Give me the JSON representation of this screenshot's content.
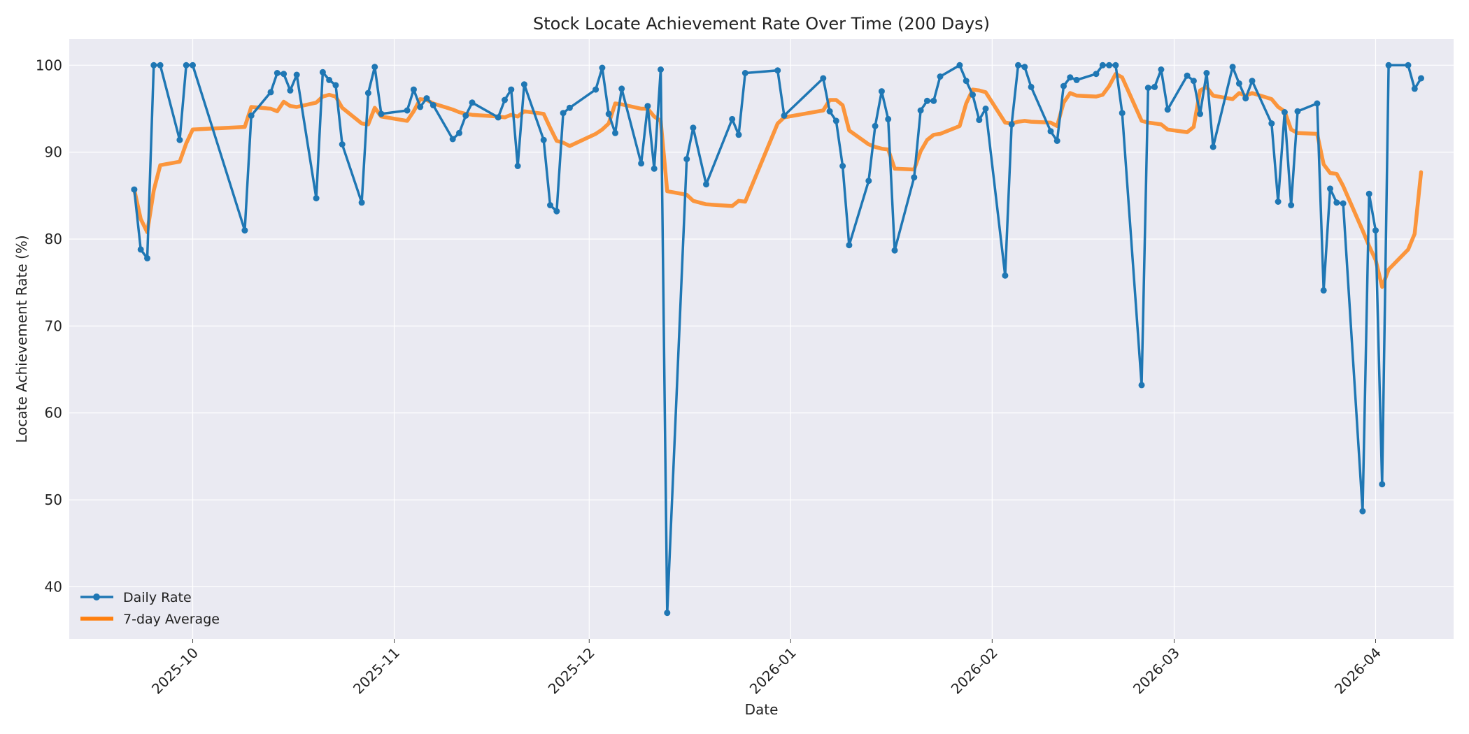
{
  "chart_data": {
    "type": "line",
    "title": "Stock Locate Achievement Rate Over Time (200 Days)",
    "xlabel": "Date",
    "ylabel": "Locate Achievement Rate (%)",
    "xlim": [
      "2025-09-12",
      "2026-04-13"
    ],
    "ylim": [
      34,
      103
    ],
    "yticks": [
      40,
      50,
      60,
      70,
      80,
      90,
      100
    ],
    "xticks": [
      {
        "date": "2025-10-01",
        "label": "2025-10"
      },
      {
        "date": "2025-11-01",
        "label": "2025-11"
      },
      {
        "date": "2025-12-01",
        "label": "2025-12"
      },
      {
        "date": "2026-01-01",
        "label": "2026-01"
      },
      {
        "date": "2026-02-01",
        "label": "2026-02"
      },
      {
        "date": "2026-03-01",
        "label": "2026-03"
      },
      {
        "date": "2026-04-01",
        "label": "2026-04"
      }
    ],
    "grid": true,
    "legend_position": "lower-left",
    "colors": {
      "daily": "#1f77b4",
      "avg": "#ff7f0e",
      "plot_bg": "#eaeaf2"
    },
    "series": [
      {
        "name": "Daily Rate",
        "x": [
          "2025-09-22",
          "2025-09-23",
          "2025-09-24",
          "2025-09-25",
          "2025-09-26",
          "2025-09-29",
          "2025-09-30",
          "2025-10-01",
          "2025-10-09",
          "2025-10-10",
          "2025-10-13",
          "2025-10-14",
          "2025-10-15",
          "2025-10-16",
          "2025-10-17",
          "2025-10-20",
          "2025-10-21",
          "2025-10-22",
          "2025-10-23",
          "2025-10-24",
          "2025-10-27",
          "2025-10-28",
          "2025-10-29",
          "2025-10-30",
          "2025-11-03",
          "2025-11-04",
          "2025-11-05",
          "2025-11-06",
          "2025-11-07",
          "2025-11-10",
          "2025-11-11",
          "2025-11-12",
          "2025-11-13",
          "2025-11-17",
          "2025-11-18",
          "2025-11-19",
          "2025-11-20",
          "2025-11-21",
          "2025-11-24",
          "2025-11-25",
          "2025-11-26",
          "2025-11-27",
          "2025-11-28",
          "2025-12-02",
          "2025-12-03",
          "2025-12-04",
          "2025-12-05",
          "2025-12-06",
          "2025-12-09",
          "2025-12-10",
          "2025-12-11",
          "2025-12-12",
          "2025-12-13",
          "2025-12-16",
          "2025-12-17",
          "2025-12-19",
          "2025-12-23",
          "2025-12-24",
          "2025-12-25",
          "2025-12-30",
          "2025-12-31",
          "2026-01-06",
          "2026-01-07",
          "2026-01-08",
          "2026-01-09",
          "2026-01-10",
          "2026-01-13",
          "2026-01-14",
          "2026-01-15",
          "2026-01-16",
          "2026-01-17",
          "2026-01-20",
          "2026-01-21",
          "2026-01-22",
          "2026-01-23",
          "2026-01-24",
          "2026-01-27",
          "2026-01-28",
          "2026-01-29",
          "2026-01-30",
          "2026-01-31",
          "2026-02-03",
          "2026-02-04",
          "2026-02-05",
          "2026-02-06",
          "2026-02-07",
          "2026-02-10",
          "2026-02-11",
          "2026-02-12",
          "2026-02-13",
          "2026-02-14",
          "2026-02-17",
          "2026-02-18",
          "2026-02-19",
          "2026-02-20",
          "2026-02-21",
          "2026-02-24",
          "2026-02-25",
          "2026-02-26",
          "2026-02-27",
          "2026-02-28",
          "2026-03-03",
          "2026-03-04",
          "2026-03-05",
          "2026-03-06",
          "2026-03-07",
          "2026-03-10",
          "2026-03-11",
          "2026-03-12",
          "2026-03-13",
          "2026-03-16",
          "2026-03-17",
          "2026-03-18",
          "2026-03-19",
          "2026-03-20",
          "2026-03-23",
          "2026-03-24",
          "2026-03-25",
          "2026-03-26",
          "2026-03-27",
          "2026-03-30",
          "2026-03-31",
          "2026-04-01",
          "2026-04-02",
          "2026-04-03",
          "2026-04-06",
          "2026-04-07",
          "2026-04-08"
        ],
        "values": [
          85.7,
          78.8,
          77.8,
          100.0,
          100.0,
          91.4,
          100.0,
          100.0,
          81.0,
          94.2,
          96.9,
          99.1,
          99.0,
          97.1,
          98.9,
          84.7,
          99.2,
          98.3,
          97.7,
          90.9,
          84.2,
          96.8,
          99.8,
          94.4,
          94.8,
          97.2,
          95.2,
          96.2,
          95.4,
          91.5,
          92.2,
          94.2,
          95.7,
          94.0,
          96.0,
          97.2,
          88.4,
          97.8,
          91.4,
          83.9,
          83.2,
          94.5,
          95.1,
          97.2,
          99.7,
          94.4,
          92.2,
          97.3,
          88.7,
          95.3,
          88.1,
          99.5,
          37.0,
          89.2,
          92.8,
          86.3,
          93.8,
          92.0,
          99.1,
          99.4,
          94.2,
          98.5,
          94.7,
          93.6,
          88.4,
          79.3,
          86.7,
          93.0,
          97.0,
          93.8,
          78.7,
          87.1,
          94.8,
          95.9,
          95.9,
          98.7,
          100.0,
          98.2,
          96.6,
          93.7,
          95.0,
          75.8,
          93.2,
          100.0,
          99.8,
          97.5,
          92.4,
          91.3,
          97.6,
          98.6,
          98.3,
          99.0,
          100.0,
          100.0,
          100.0,
          94.5,
          63.2,
          97.4,
          97.5,
          99.5,
          94.9,
          98.8,
          98.2,
          94.4,
          99.1,
          90.6,
          99.8,
          97.9,
          96.2,
          98.2,
          93.3,
          84.3,
          94.6,
          83.9,
          94.7,
          95.6,
          74.1,
          85.8,
          84.2,
          84.1,
          48.7,
          85.2,
          81.0,
          51.8,
          100.0,
          100.0,
          97.3,
          98.5
        ]
      },
      {
        "name": "7-day Average",
        "x": [
          "2025-09-22",
          "2025-09-23",
          "2025-09-24",
          "2025-09-25",
          "2025-09-26",
          "2025-09-29",
          "2025-09-30",
          "2025-10-01",
          "2025-10-09",
          "2025-10-10",
          "2025-10-13",
          "2025-10-14",
          "2025-10-15",
          "2025-10-16",
          "2025-10-17",
          "2025-10-20",
          "2025-10-21",
          "2025-10-22",
          "2025-10-23",
          "2025-10-24",
          "2025-10-27",
          "2025-10-28",
          "2025-10-29",
          "2025-10-30",
          "2025-11-03",
          "2025-11-04",
          "2025-11-05",
          "2025-11-06",
          "2025-11-07",
          "2025-11-10",
          "2025-11-11",
          "2025-11-12",
          "2025-11-13",
          "2025-11-17",
          "2025-11-18",
          "2025-11-19",
          "2025-11-20",
          "2025-11-21",
          "2025-11-24",
          "2025-11-25",
          "2025-11-26",
          "2025-11-27",
          "2025-11-28",
          "2025-12-02",
          "2025-12-03",
          "2025-12-04",
          "2025-12-05",
          "2025-12-06",
          "2025-12-09",
          "2025-12-10",
          "2025-12-11",
          "2025-12-12",
          "2025-12-13",
          "2025-12-16",
          "2025-12-17",
          "2025-12-19",
          "2025-12-23",
          "2025-12-24",
          "2025-12-25",
          "2025-12-30",
          "2025-12-31",
          "2026-01-06",
          "2026-01-07",
          "2026-01-08",
          "2026-01-09",
          "2026-01-10",
          "2026-01-13",
          "2026-01-14",
          "2026-01-15",
          "2026-01-16",
          "2026-01-17",
          "2026-01-20",
          "2026-01-21",
          "2026-01-22",
          "2026-01-23",
          "2026-01-24",
          "2026-01-27",
          "2026-01-28",
          "2026-01-29",
          "2026-01-30",
          "2026-01-31",
          "2026-02-03",
          "2026-02-04",
          "2026-02-05",
          "2026-02-06",
          "2026-02-07",
          "2026-02-10",
          "2026-02-11",
          "2026-02-12",
          "2026-02-13",
          "2026-02-14",
          "2026-02-17",
          "2026-02-18",
          "2026-02-19",
          "2026-02-20",
          "2026-02-21",
          "2026-02-24",
          "2026-02-25",
          "2026-02-26",
          "2026-02-27",
          "2026-02-28",
          "2026-03-03",
          "2026-03-04",
          "2026-03-05",
          "2026-03-06",
          "2026-03-07",
          "2026-03-10",
          "2026-03-11",
          "2026-03-12",
          "2026-03-13",
          "2026-03-16",
          "2026-03-17",
          "2026-03-18",
          "2026-03-19",
          "2026-03-20",
          "2026-03-23",
          "2026-03-24",
          "2026-03-25",
          "2026-03-26",
          "2026-03-27",
          "2026-03-30",
          "2026-03-31",
          "2026-04-01",
          "2026-04-02",
          "2026-04-03",
          "2026-04-06",
          "2026-04-07",
          "2026-04-08"
        ],
        "values": [
          85.7,
          82.3,
          80.8,
          85.6,
          88.5,
          88.9,
          91.0,
          92.6,
          92.9,
          95.2,
          95.0,
          94.7,
          95.8,
          95.3,
          95.2,
          95.7,
          96.4,
          96.6,
          96.4,
          95.1,
          93.3,
          93.2,
          95.1,
          94.1,
          93.6,
          94.7,
          96.1,
          96.0,
          95.6,
          94.9,
          94.6,
          94.4,
          94.3,
          94.1,
          94.0,
          94.3,
          94.1,
          94.7,
          94.4,
          92.8,
          91.3,
          91.1,
          90.7,
          92.1,
          92.6,
          93.3,
          95.6,
          95.5,
          95.0,
          95.0,
          94.1,
          93.6,
          85.5,
          85.1,
          84.4,
          84.0,
          83.8,
          84.4,
          84.3,
          93.3,
          94.0,
          94.8,
          96.0,
          96.0,
          95.4,
          92.5,
          90.9,
          90.6,
          90.4,
          90.3,
          88.1,
          88.0,
          90.1,
          91.4,
          92.0,
          92.1,
          93.0,
          95.6,
          97.2,
          97.1,
          96.9,
          93.4,
          93.3,
          93.5,
          93.6,
          93.5,
          93.4,
          93.0,
          95.7,
          96.8,
          96.5,
          96.4,
          96.6,
          97.6,
          99.0,
          98.6,
          93.6,
          93.4,
          93.3,
          93.2,
          92.6,
          92.3,
          92.9,
          97.1,
          97.5,
          96.5,
          96.1,
          96.8,
          96.5,
          96.8,
          96.1,
          95.2,
          94.7,
          92.6,
          92.2,
          92.1,
          88.6,
          87.6,
          87.5,
          86.1,
          81.0,
          79.2,
          77.6,
          74.5,
          76.5,
          78.8,
          80.6,
          87.7
        ]
      }
    ]
  }
}
